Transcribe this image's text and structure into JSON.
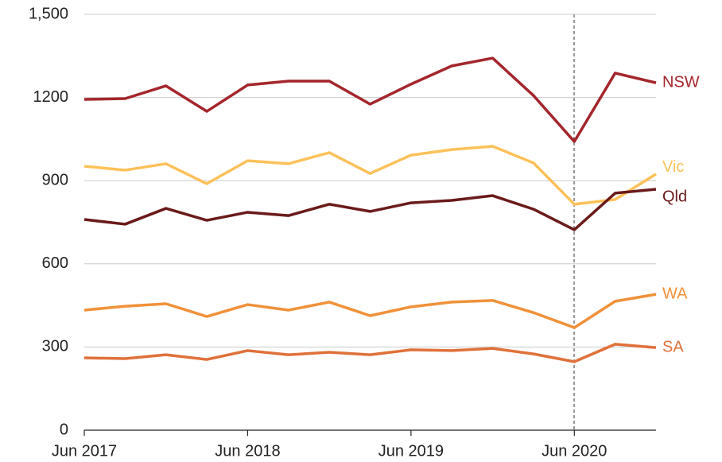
{
  "chart_data": {
    "type": "line",
    "categories": [
      "Jun 2017",
      null,
      null,
      null,
      "Jun 2018",
      null,
      null,
      null,
      "Jun 2019",
      null,
      null,
      null,
      "Jun 2020",
      null,
      null
    ],
    "series": [
      {
        "name": "NSW",
        "color": "#a4262c",
        "values": [
          1193,
          1196,
          1242,
          1150,
          1245,
          1259,
          1259,
          1176,
          1248,
          1314,
          1342,
          1207,
          1041,
          1288,
          1253
        ]
      },
      {
        "name": "Vic",
        "color": "#fcc15a",
        "values": [
          952,
          938,
          961,
          889,
          972,
          961,
          1001,
          926,
          992,
          1012,
          1024,
          964,
          815,
          832,
          924
        ]
      },
      {
        "name": "Qld",
        "color": "#6b1a1a",
        "values": [
          760,
          743,
          800,
          757,
          786,
          774,
          815,
          789,
          820,
          829,
          846,
          797,
          723,
          855,
          869
        ]
      },
      {
        "name": "WA",
        "color": "#f0913a",
        "values": [
          433,
          447,
          456,
          410,
          453,
          433,
          462,
          413,
          445,
          462,
          468,
          424,
          370,
          465,
          490
        ]
      },
      {
        "name": "SA",
        "color": "#e0703a",
        "values": [
          261,
          258,
          272,
          255,
          287,
          272,
          281,
          272,
          290,
          287,
          295,
          275,
          247,
          310,
          298
        ]
      }
    ],
    "ylim": [
      0,
      1500
    ],
    "yticks": [
      0,
      300,
      600,
      900,
      1200,
      {
        "value": 1500,
        "label": "1,500"
      }
    ],
    "grid": true
  }
}
